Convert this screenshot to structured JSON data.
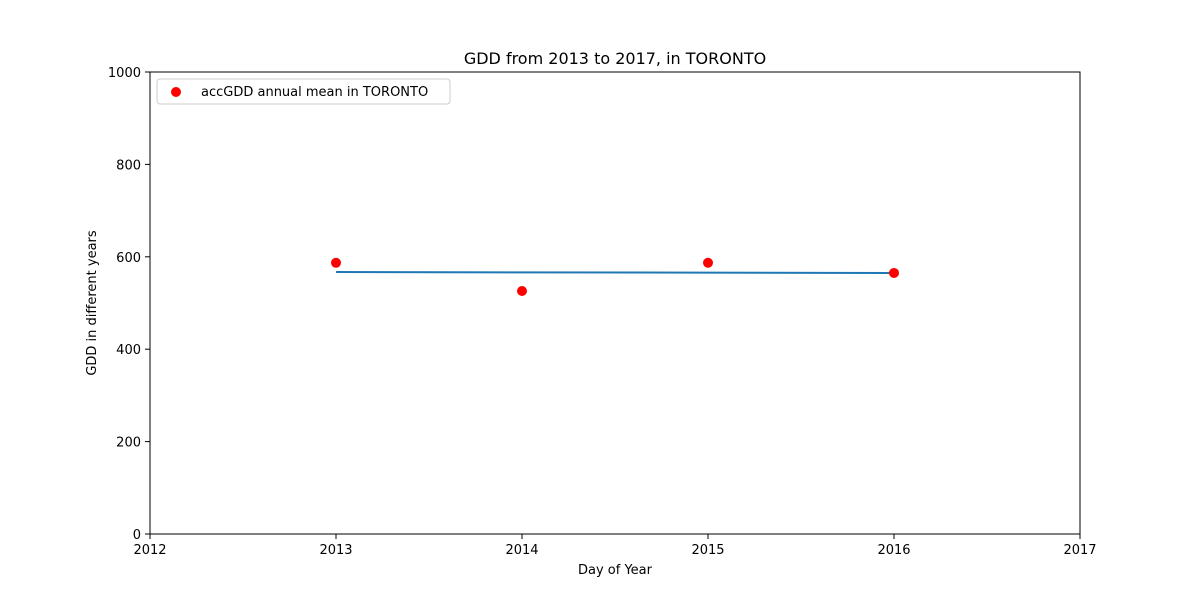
{
  "chart_data": {
    "type": "scatter",
    "title": "GDD from 2013 to 2017, in TORONTO",
    "xlabel": "Day of Year",
    "ylabel": "GDD in different years",
    "xlim": [
      2012,
      2017
    ],
    "ylim": [
      0,
      1000
    ],
    "xticks": [
      2012,
      2013,
      2014,
      2015,
      2016,
      2017
    ],
    "yticks": [
      0,
      200,
      400,
      600,
      800,
      1000
    ],
    "grid": false,
    "legend_position": "top-left",
    "series": [
      {
        "name": "accGDD annual mean in TORONTO",
        "kind": "scatter",
        "color": "#ff0000",
        "x": [
          2013,
          2014,
          2015,
          2016
        ],
        "y": [
          587,
          526,
          587,
          565
        ]
      },
      {
        "kind": "line",
        "color": "#1f77b4",
        "x": [
          2013,
          2016
        ],
        "y": [
          567,
          565
        ]
      }
    ]
  }
}
